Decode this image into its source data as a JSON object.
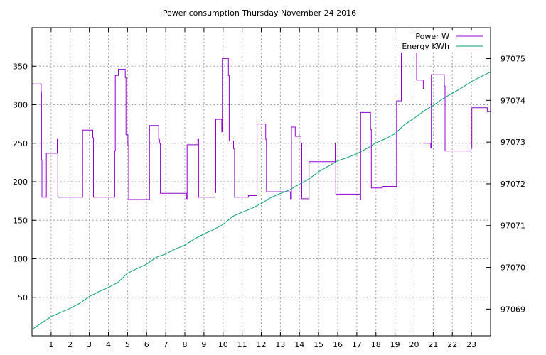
{
  "chart_data": {
    "type": "line",
    "title": "Power consumption Thursday November 24 2016",
    "xlabel": "",
    "ylabel": "",
    "xlim": [
      0,
      24
    ],
    "ylim": [
      0,
      400
    ],
    "y2lim": [
      97068.36,
      97075.74
    ],
    "x_ticks": [
      1,
      2,
      3,
      4,
      5,
      6,
      7,
      8,
      9,
      10,
      11,
      12,
      13,
      14,
      15,
      16,
      17,
      18,
      19,
      20,
      21,
      22,
      23
    ],
    "x_tick_labels": [
      "1",
      "2",
      "3",
      "4",
      "5",
      "6",
      "7",
      "8",
      "9",
      "10",
      "11",
      "12",
      "13",
      "14",
      "15",
      "16",
      "17",
      "18",
      "19",
      "20",
      "21",
      "22",
      "23"
    ],
    "y_ticks": [
      50,
      100,
      150,
      200,
      250,
      300,
      350
    ],
    "y_tick_labels": [
      "50",
      "100",
      "150",
      "200",
      "250",
      "300",
      "350"
    ],
    "y2_ticks": [
      97069,
      97070,
      97071,
      97072,
      97073,
      97074,
      97075
    ],
    "y2_tick_labels": [
      "97069",
      "97070",
      "97071",
      "97072",
      "97073",
      "97074",
      "97075"
    ],
    "grid": true,
    "legend_position": "top-right",
    "series": [
      {
        "name": "Power W",
        "color": "#9400d3",
        "axis": "y",
        "step": true,
        "points": [
          [
            0,
            327
          ],
          [
            0.45,
            327
          ],
          [
            0.48,
            316
          ],
          [
            0.5,
            228
          ],
          [
            0.52,
            180
          ],
          [
            0.7,
            180
          ],
          [
            0.75,
            237
          ],
          [
            1.3,
            237
          ],
          [
            1.32,
            255
          ],
          [
            1.35,
            180
          ],
          [
            2.6,
            180
          ],
          [
            2.65,
            267
          ],
          [
            3.15,
            267
          ],
          [
            3.18,
            257
          ],
          [
            3.22,
            180
          ],
          [
            4.3,
            180
          ],
          [
            4.33,
            240
          ],
          [
            4.36,
            338
          ],
          [
            4.5,
            338
          ],
          [
            4.52,
            346
          ],
          [
            4.85,
            346
          ],
          [
            4.88,
            335
          ],
          [
            4.92,
            261
          ],
          [
            5.02,
            247
          ],
          [
            5.06,
            177
          ],
          [
            6.1,
            177
          ],
          [
            6.15,
            273
          ],
          [
            6.6,
            273
          ],
          [
            6.63,
            255
          ],
          [
            6.67,
            250
          ],
          [
            6.72,
            185
          ],
          [
            8.05,
            185
          ],
          [
            8.08,
            178
          ],
          [
            8.12,
            248
          ],
          [
            8.65,
            248
          ],
          [
            8.68,
            255
          ],
          [
            8.72,
            180
          ],
          [
            9.55,
            180
          ],
          [
            9.58,
            186
          ],
          [
            9.62,
            281
          ],
          [
            9.9,
            281
          ],
          [
            9.93,
            265
          ],
          [
            9.96,
            360
          ],
          [
            10.25,
            360
          ],
          [
            10.28,
            338
          ],
          [
            10.32,
            253
          ],
          [
            10.52,
            253
          ],
          [
            10.55,
            243
          ],
          [
            10.6,
            180
          ],
          [
            11.3,
            180
          ],
          [
            11.33,
            182
          ],
          [
            11.75,
            182
          ],
          [
            11.78,
            275
          ],
          [
            12.2,
            275
          ],
          [
            12.23,
            255
          ],
          [
            12.27,
            187
          ],
          [
            13.5,
            187
          ],
          [
            13.53,
            178
          ],
          [
            13.58,
            271
          ],
          [
            13.75,
            271
          ],
          [
            13.78,
            259
          ],
          [
            14.05,
            259
          ],
          [
            14.08,
            250
          ],
          [
            14.12,
            178
          ],
          [
            14.45,
            178
          ],
          [
            14.5,
            226
          ],
          [
            15.85,
            226
          ],
          [
            15.87,
            250
          ],
          [
            15.9,
            184
          ],
          [
            17.15,
            184
          ],
          [
            17.17,
            177
          ],
          [
            17.2,
            290
          ],
          [
            17.7,
            290
          ],
          [
            17.72,
            268
          ],
          [
            17.76,
            192
          ],
          [
            18.3,
            192
          ],
          [
            18.33,
            194
          ],
          [
            19.05,
            194
          ],
          [
            19.08,
            305
          ],
          [
            19.3,
            305
          ],
          [
            19.33,
            389
          ],
          [
            20.1,
            389
          ],
          [
            20.13,
            332
          ],
          [
            20.45,
            332
          ],
          [
            20.48,
            321
          ],
          [
            20.52,
            250
          ],
          [
            20.85,
            250
          ],
          [
            20.87,
            244
          ],
          [
            20.9,
            339
          ],
          [
            21.55,
            339
          ],
          [
            21.58,
            324
          ],
          [
            21.62,
            240
          ],
          [
            22.95,
            240
          ],
          [
            22.98,
            244
          ],
          [
            23.02,
            296
          ],
          [
            23.8,
            296
          ],
          [
            23.83,
            291
          ],
          [
            24,
            291
          ]
        ]
      },
      {
        "name": "Energy KWh",
        "color": "#009e73",
        "axis": "y2",
        "step": false,
        "points": [
          [
            0,
            97068.51
          ],
          [
            0.5,
            97068.67
          ],
          [
            1,
            97068.82
          ],
          [
            1.5,
            97068.92
          ],
          [
            2,
            97069.02
          ],
          [
            2.5,
            97069.14
          ],
          [
            3,
            97069.3
          ],
          [
            3.5,
            97069.42
          ],
          [
            4,
            97069.52
          ],
          [
            4.5,
            97069.64
          ],
          [
            5,
            97069.86
          ],
          [
            5.5,
            97069.97
          ],
          [
            6,
            97070.08
          ],
          [
            6.5,
            97070.24
          ],
          [
            7,
            97070.32
          ],
          [
            7.5,
            97070.44
          ],
          [
            8,
            97070.53
          ],
          [
            8.5,
            97070.68
          ],
          [
            9,
            97070.8
          ],
          [
            9.5,
            97070.9
          ],
          [
            10,
            97071.03
          ],
          [
            10.5,
            97071.22
          ],
          [
            11,
            97071.32
          ],
          [
            11.5,
            97071.41
          ],
          [
            12,
            97071.53
          ],
          [
            12.5,
            97071.67
          ],
          [
            13,
            97071.77
          ],
          [
            13.5,
            97071.86
          ],
          [
            14,
            97071.99
          ],
          [
            14.5,
            97072.12
          ],
          [
            15,
            97072.29
          ],
          [
            15.5,
            97072.42
          ],
          [
            16,
            97072.55
          ],
          [
            16.5,
            97072.63
          ],
          [
            17,
            97072.72
          ],
          [
            17.5,
            97072.84
          ],
          [
            18,
            97072.98
          ],
          [
            18.5,
            97073.08
          ],
          [
            19,
            97073.2
          ],
          [
            19.5,
            97073.42
          ],
          [
            20,
            97073.57
          ],
          [
            20.5,
            97073.74
          ],
          [
            21,
            97073.88
          ],
          [
            21.5,
            97074.04
          ],
          [
            22,
            97074.17
          ],
          [
            22.5,
            97074.3
          ],
          [
            23,
            97074.45
          ],
          [
            23.5,
            97074.57
          ],
          [
            24,
            97074.68
          ]
        ]
      }
    ]
  }
}
